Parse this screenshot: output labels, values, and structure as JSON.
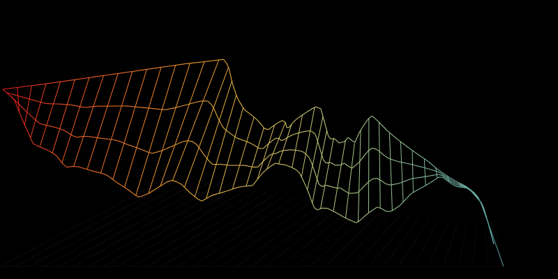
{
  "scene": {
    "background": "#000000",
    "style": "wireframe-terrain",
    "palette": [
      "#e8201e",
      "#ee5a22",
      "#f08a2c",
      "#e6b03c",
      "#d4c064",
      "#b8c880",
      "#98c090",
      "#70b0a0",
      "#5aa0a0"
    ],
    "floor_grid_color": "#1a0a12"
  }
}
